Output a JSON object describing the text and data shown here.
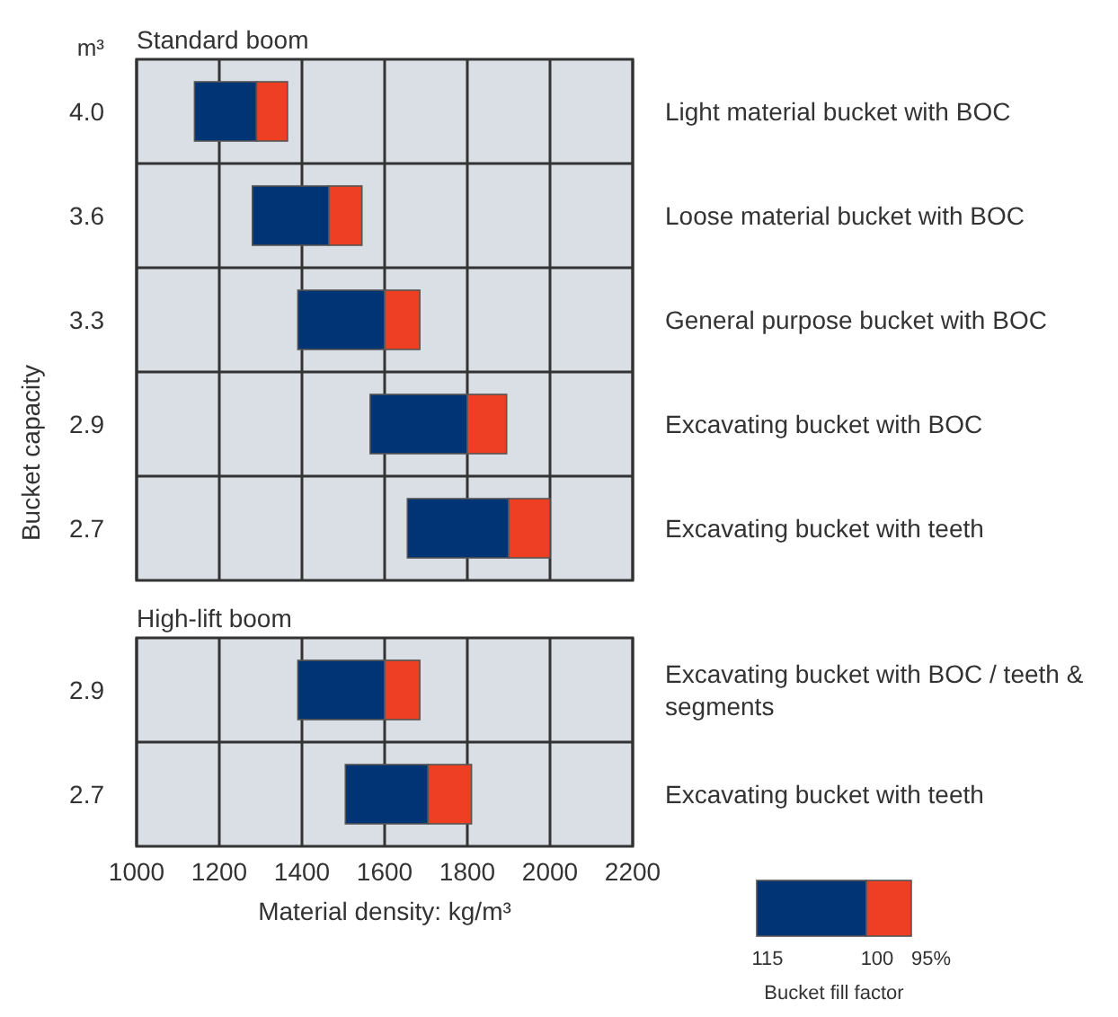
{
  "chart_data": [
    {
      "type": "bar",
      "orientation": "horizontal",
      "title": "Standard boom",
      "ylabel": "Bucket capacity",
      "categories": [
        "4.0",
        "3.6",
        "3.3",
        "2.9",
        "2.7"
      ],
      "series": [
        {
          "color": "#003475",
          "base": [
            1140,
            1280,
            1390,
            1565,
            1655
          ],
          "values": [
            150,
            185,
            210,
            235,
            245
          ]
        },
        {
          "color": "#ee3e23",
          "base": [
            1290,
            1465,
            1600,
            1800,
            1900
          ],
          "values": [
            75,
            80,
            85,
            95,
            100
          ]
        }
      ],
      "xlim": [
        1000,
        2200
      ],
      "xticks": [
        1000,
        1200,
        1400,
        1600,
        1800,
        2000,
        2200
      ],
      "tick_labels": "y",
      "grid": true,
      "annotations": [
        "Light material bucket with BOC",
        "Loose material bucket with BOC",
        "General purpose bucket with BOC",
        "Excavating bucket with BOC",
        "Excavating bucket with teeth",
        "m³"
      ]
    },
    {
      "type": "bar",
      "orientation": "horizontal",
      "title": "High-lift boom",
      "xlabel": "Material density: kg/m³",
      "categories": [
        "2.9",
        "2.7"
      ],
      "series": [
        {
          "color": "#003475",
          "base": [
            1390,
            1505
          ],
          "values": [
            210,
            200
          ]
        },
        {
          "color": "#ee3e23",
          "base": [
            1600,
            1705
          ],
          "values": [
            85,
            105
          ]
        }
      ],
      "xlim": [
        1000,
        2200
      ],
      "xticks": [
        1000,
        1200,
        1400,
        1600,
        1800,
        2000,
        2200
      ],
      "grid": true,
      "annotations": [
        "Excavating bucket with BOC / teeth & segments",
        "Excavating bucket with teeth",
        "115",
        "100",
        "95%",
        "Bucket fill factor"
      ]
    }
  ]
}
